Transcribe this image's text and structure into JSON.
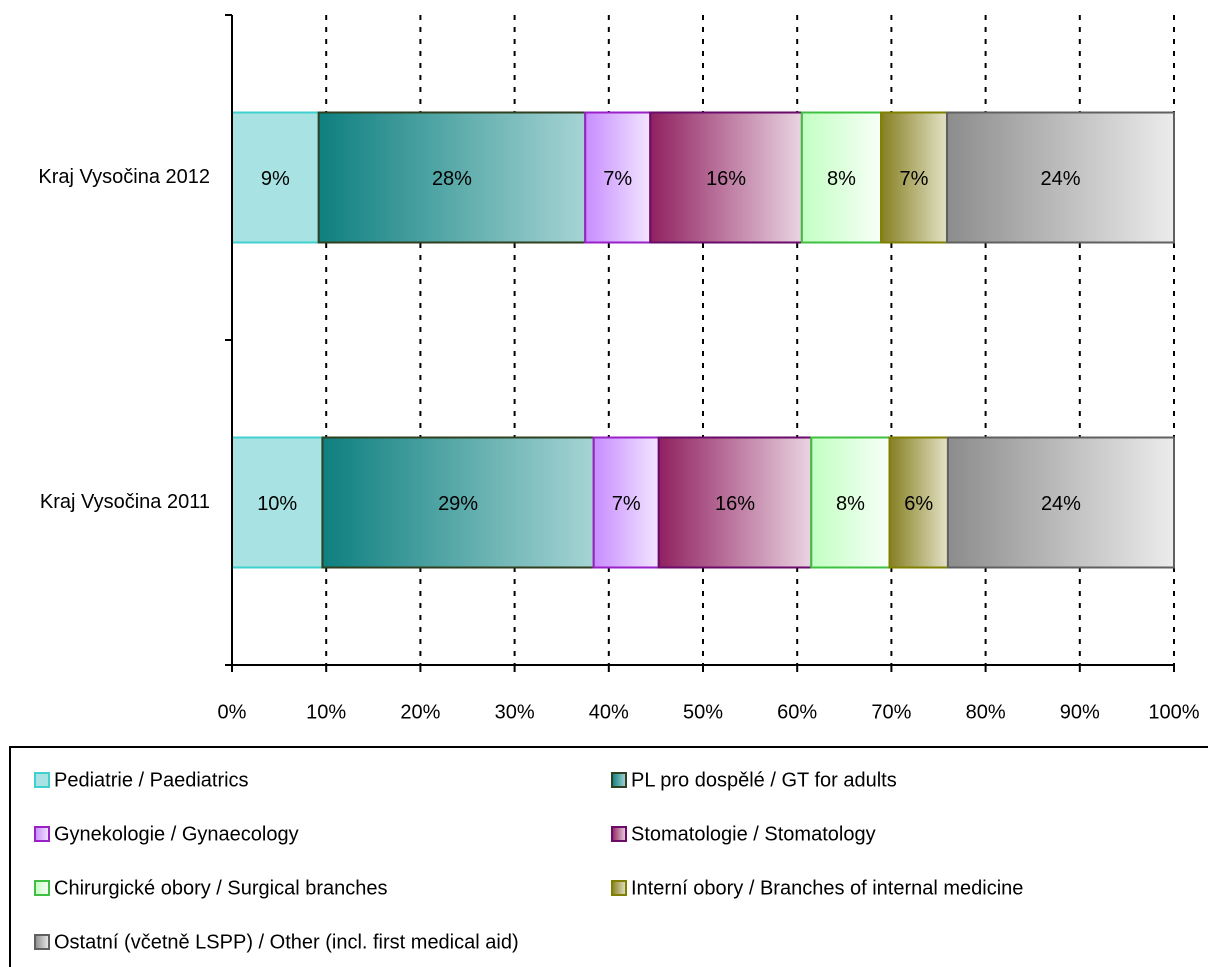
{
  "chart_data": {
    "type": "stacked-bar-horizontal",
    "categories": [
      "Kraj Vysočina 2012",
      "Kraj Vysočina 2011"
    ],
    "series": [
      {
        "name": "Pediatrie / Paediatrics",
        "color": "#40d0d0",
        "fill": [
          "#a8e2e2",
          "#a8e2e2"
        ],
        "values": [
          9.2,
          9.6
        ],
        "value_labels": [
          "9%",
          "10%"
        ]
      },
      {
        "name": "PL pro dospělé / GT for adults",
        "color": "#2f4020",
        "fill": [
          "#0e7f7f",
          "#a6d4d4"
        ],
        "values": [
          28.3,
          28.8
        ],
        "value_labels": [
          "28%",
          "29%"
        ]
      },
      {
        "name": "Gynekologie / Gynaecology",
        "color": "#9a20c8",
        "fill": [
          "#c88cff",
          "#f2e6ff"
        ],
        "values": [
          6.9,
          6.9
        ],
        "value_labels": [
          "7%",
          "7%"
        ]
      },
      {
        "name": "Stomatologie / Stomatology",
        "color": "#6a0a6a",
        "fill": [
          "#902060",
          "#ead4e2"
        ],
        "values": [
          16.1,
          16.2
        ],
        "value_labels": [
          "16%",
          "16%"
        ]
      },
      {
        "name": "Chirurgické obory / Surgical branches",
        "color": "#40c040",
        "fill": [
          "#c2ffc2",
          "#f8fff8"
        ],
        "values": [
          8.4,
          8.3
        ],
        "value_labels": [
          "8%",
          "8%"
        ]
      },
      {
        "name": "Interní obory / Branches of internal medicine",
        "color": "#808000",
        "fill": [
          "#857f22",
          "#e4e2c6"
        ],
        "values": [
          7.0,
          6.2
        ],
        "value_labels": [
          "7%",
          "6%"
        ]
      },
      {
        "name": "Ostatní (včetně LSPP) / Other (incl. first medical aid)",
        "color": "#606060",
        "fill": [
          "#8c8c8c",
          "#ececec"
        ],
        "values": [
          24.1,
          24.0
        ],
        "value_labels": [
          "24%",
          "24%"
        ]
      }
    ],
    "xlim": [
      0,
      100
    ],
    "xticks": [
      {
        "value": 0,
        "label": "0%"
      },
      {
        "value": 10,
        "label": "10%"
      },
      {
        "value": 20,
        "label": "20%"
      },
      {
        "value": 30,
        "label": "30%"
      },
      {
        "value": 40,
        "label": "40%"
      },
      {
        "value": 50,
        "label": "50%"
      },
      {
        "value": 60,
        "label": "60%"
      },
      {
        "value": 70,
        "label": "70%"
      },
      {
        "value": 80,
        "label": "80%"
      },
      {
        "value": 90,
        "label": "90%"
      },
      {
        "value": 100,
        "label": "100%"
      }
    ],
    "grid": true,
    "legend": "bottom"
  }
}
